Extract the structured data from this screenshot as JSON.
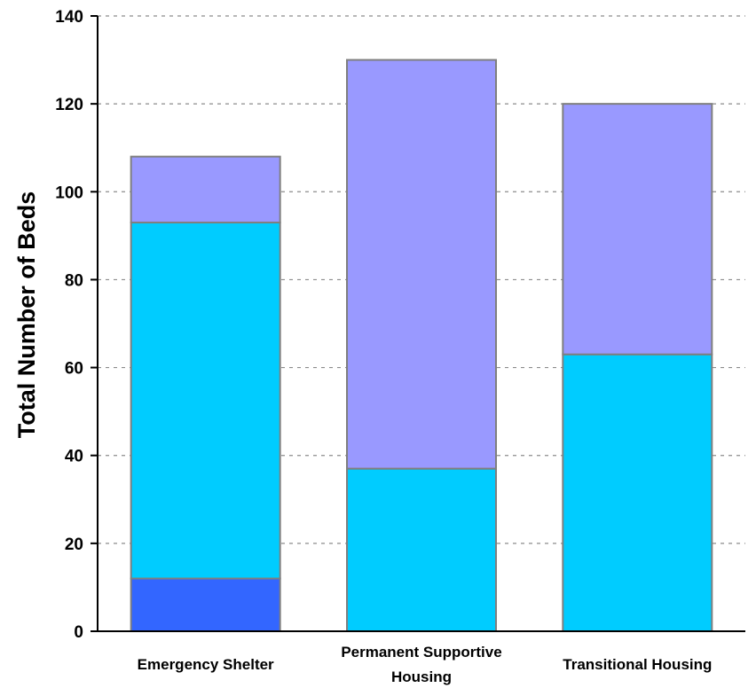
{
  "chart_data": {
    "type": "bar",
    "stacked": true,
    "categories": [
      [
        "Emergency Shelter"
      ],
      [
        "Permanent Supportive",
        "Housing"
      ],
      [
        "Transitional Housing"
      ]
    ],
    "series": [
      {
        "color": "#3366ff",
        "values": [
          12,
          0,
          0
        ]
      },
      {
        "color": "#00ccff",
        "values": [
          81,
          37,
          63
        ]
      },
      {
        "color": "#9999ff",
        "values": [
          15,
          93,
          57
        ]
      }
    ],
    "title": "",
    "xlabel": "",
    "ylabel": "Total Number of Beds",
    "ylim": [
      0,
      140
    ],
    "yticks": [
      0,
      20,
      40,
      60,
      80,
      100,
      120,
      140
    ],
    "grid": true,
    "legend": "none"
  }
}
